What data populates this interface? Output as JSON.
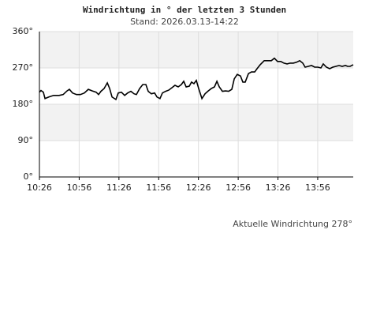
{
  "chart_data": {
    "type": "line",
    "title": "Windrichtung in ° der letzten 3 Stunden",
    "subtitle": "Stand: 2026.03.13-14:22",
    "annotation": "Aktuelle Windrichtung 278°",
    "xlim": [
      626,
      862.8
    ],
    "xticks": [
      {
        "value": 626,
        "label": "10:26"
      },
      {
        "value": 656,
        "label": "10:56"
      },
      {
        "value": 686,
        "label": "11:26"
      },
      {
        "value": 716,
        "label": "11:56"
      },
      {
        "value": 746,
        "label": "12:26"
      },
      {
        "value": 776,
        "label": "12:56"
      },
      {
        "value": 806,
        "label": "13:26"
      },
      {
        "value": 836,
        "label": "13:56"
      }
    ],
    "ylim": [
      0,
      360
    ],
    "yticks": [
      {
        "value": 0,
        "label": "0°"
      },
      {
        "value": 90,
        "label": "90°"
      },
      {
        "value": 180,
        "label": "180°"
      },
      {
        "value": 270,
        "label": "270°"
      },
      {
        "value": 360,
        "label": "360°"
      }
    ],
    "grid": true,
    "bands": "#f2f2f2",
    "series": [
      {
        "color": "#000000",
        "x": [
          626,
          627.2,
          629,
          630.2,
          633.1,
          636.7,
          640.9,
          643.9,
          646.8,
          648.6,
          651,
          654,
          656.9,
          659.9,
          662.9,
          665.9,
          668.8,
          670.6,
          672.4,
          674.8,
          677.2,
          679,
          680.8,
          683.7,
          685.5,
          687.9,
          690.3,
          692.6,
          695,
          697.4,
          699.2,
          701.6,
          704,
          706.3,
          708.1,
          710.5,
          712.9,
          714.7,
          717,
          718.8,
          721.2,
          723.6,
          726,
          728.3,
          730.7,
          733.1,
          734.9,
          736.7,
          739.1,
          740.8,
          742.6,
          744.4,
          746.2,
          748.6,
          751,
          753.4,
          755.7,
          758.1,
          759.9,
          761.7,
          764.1,
          766.4,
          768.8,
          771.2,
          773,
          775.3,
          777.7,
          779.5,
          781.3,
          783.7,
          786,
          788.4,
          790.2,
          792.6,
          795.6,
          798.6,
          801,
          803.3,
          805.7,
          808.1,
          810.5,
          812.9,
          815.2,
          817.6,
          820,
          822.4,
          824.7,
          826.5,
          828.9,
          831.3,
          833.7,
          836,
          838.4,
          840.2,
          842.6,
          845,
          847.4,
          849.7,
          852.1,
          854.5,
          856.9,
          858.6,
          860.4,
          862.8
        ],
        "values": [
          210,
          214,
          210,
          194,
          198,
          202,
          202,
          204,
          213,
          217,
          208,
          204,
          204,
          208,
          217,
          213,
          210,
          204,
          212,
          219,
          233,
          219,
          198,
          192,
          208,
          210,
          202,
          208,
          212,
          206,
          204,
          219,
          229,
          229,
          212,
          206,
          208,
          198,
          194,
          208,
          212,
          215,
          221,
          227,
          223,
          229,
          237,
          223,
          225,
          235,
          231,
          239,
          219,
          194,
          206,
          213,
          219,
          223,
          237,
          223,
          212,
          213,
          212,
          217,
          243,
          254,
          250,
          235,
          235,
          256,
          260,
          260,
          268,
          278,
          288,
          288,
          288,
          294,
          286,
          286,
          282,
          280,
          282,
          282,
          284,
          288,
          282,
          272,
          274,
          276,
          272,
          272,
          270,
          280,
          272,
          268,
          272,
          274,
          276,
          274,
          276,
          274,
          274,
          278
        ]
      }
    ]
  }
}
